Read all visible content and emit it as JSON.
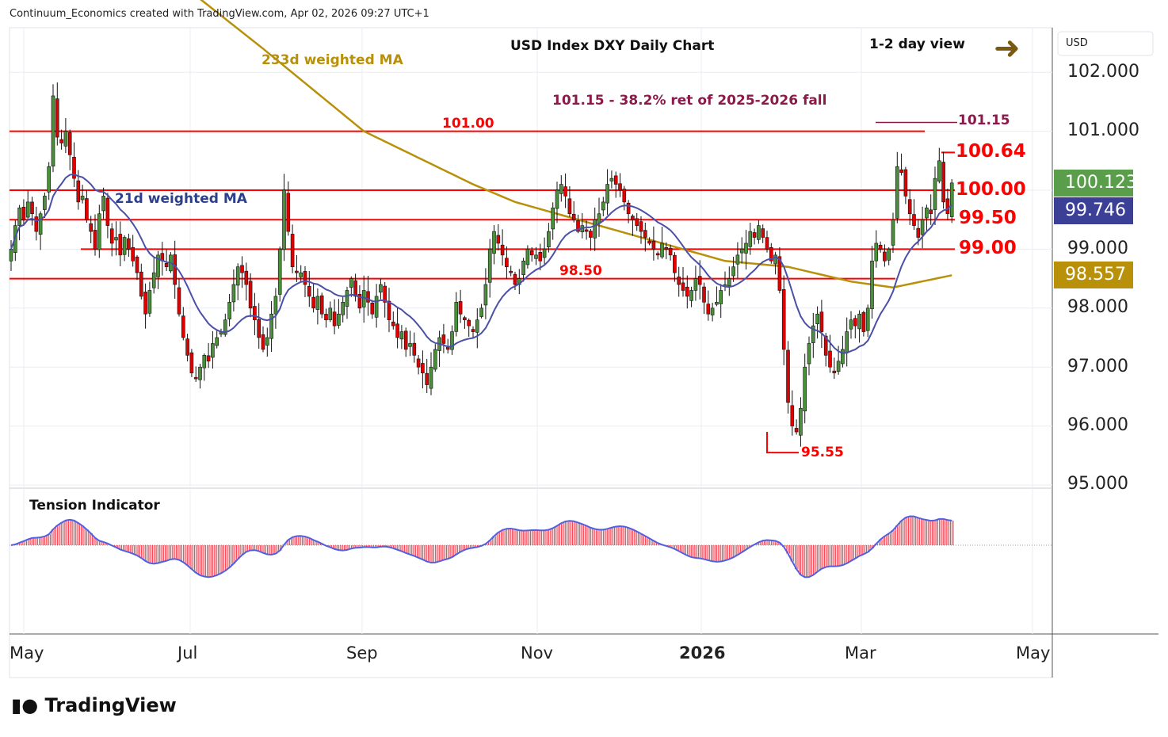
{
  "header": {
    "credit": "Continuum_Economics created with TradingView.com, Apr 02, 2026 09:27 UTC+1",
    "title": "USD Index DXY Daily Chart",
    "view": "1-2 day view",
    "currency": "USD",
    "logo": "TradingView"
  },
  "colors": {
    "up": "#4a8f3a",
    "down": "#e00000",
    "ma21": "#4b4fa8",
    "ma233": "#b8900a",
    "level": "#ff0000",
    "ret": "#8b1a4a",
    "badge_close": "#5a9e4b",
    "badge_ma21": "#3c3f96",
    "badge_ma233": "#b8900a"
  },
  "chart_data": {
    "type": "candlestick",
    "title": "USD Index DXY Daily Chart",
    "ylim": [
      95,
      102.7
    ],
    "yticks": [
      "102.000",
      "101.000",
      "100.000",
      "99.000",
      "98.000",
      "97.000",
      "96.000",
      "95.000"
    ],
    "xticks": [
      "May",
      "Jul",
      "Sep",
      "Nov",
      "2026",
      "Mar",
      "May"
    ],
    "closes": [
      99.0,
      99.4,
      99.7,
      99.5,
      99.8,
      99.6,
      99.3,
      99.6,
      99.9,
      100.4,
      101.6,
      100.9,
      100.8,
      101.0,
      100.6,
      100.2,
      99.8,
      99.9,
      99.5,
      99.3,
      99.0,
      99.6,
      99.9,
      99.4,
      99.1,
      99.2,
      98.9,
      99.2,
      99.0,
      98.8,
      98.6,
      98.2,
      97.9,
      98.3,
      98.6,
      98.9,
      98.8,
      98.7,
      98.9,
      98.4,
      97.9,
      97.5,
      97.2,
      96.9,
      96.8,
      97.0,
      97.2,
      97.1,
      97.4,
      97.5,
      97.6,
      97.8,
      98.1,
      98.4,
      98.7,
      98.6,
      98.4,
      98.0,
      97.8,
      97.5,
      97.3,
      97.5,
      97.9,
      98.2,
      99.0,
      100.0,
      99.3,
      98.7,
      98.6,
      98.6,
      98.4,
      98.2,
      98.0,
      98.2,
      97.9,
      97.8,
      98.0,
      97.7,
      97.9,
      98.1,
      98.3,
      98.5,
      98.2,
      98.0,
      98.3,
      98.1,
      97.9,
      98.2,
      98.4,
      98.1,
      97.8,
      97.7,
      97.5,
      97.6,
      97.3,
      97.4,
      97.2,
      97.0,
      96.9,
      96.7,
      97.0,
      97.3,
      97.5,
      97.4,
      97.3,
      97.6,
      98.1,
      97.9,
      97.8,
      97.7,
      97.6,
      97.8,
      98.0,
      98.4,
      99.0,
      99.3,
      99.1,
      98.9,
      98.7,
      98.6,
      98.4,
      98.5,
      98.8,
      99.0,
      98.9,
      98.9,
      98.8,
      99.0,
      99.3,
      99.7,
      100.0,
      100.1,
      99.9,
      99.6,
      99.5,
      99.3,
      99.4,
      99.3,
      99.2,
      99.5,
      99.6,
      99.8,
      100.1,
      100.2,
      100.1,
      100.0,
      99.8,
      99.6,
      99.5,
      99.4,
      99.3,
      99.2,
      99.1,
      99.0,
      98.9,
      99.1,
      99.0,
      98.9,
      98.6,
      98.4,
      98.3,
      98.2,
      98.3,
      98.5,
      98.4,
      98.1,
      97.9,
      98.0,
      98.1,
      98.3,
      98.4,
      98.5,
      98.7,
      98.9,
      99.0,
      99.1,
      99.3,
      99.2,
      99.4,
      99.2,
      99.0,
      98.8,
      98.9,
      98.3,
      97.3,
      96.4,
      96.0,
      95.9,
      96.3,
      97.0,
      97.4,
      97.7,
      97.9,
      97.6,
      97.2,
      97.0,
      96.9,
      97.1,
      97.3,
      97.6,
      97.8,
      97.7,
      97.9,
      97.6,
      98.0,
      98.8,
      99.1,
      99.0,
      98.8,
      99.0,
      99.5,
      100.4,
      100.3,
      99.9,
      99.6,
      99.4,
      99.2,
      99.5,
      99.7,
      99.6,
      100.2,
      100.5,
      99.8,
      99.6,
      100.123
    ],
    "ma233": [
      {
        "bar": 44,
        "value": 103.3
      },
      {
        "bar": 60,
        "value": 102.4
      },
      {
        "bar": 84,
        "value": 101.0
      },
      {
        "bar": 110,
        "value": 100.1
      },
      {
        "bar": 120,
        "value": 99.8
      },
      {
        "bar": 150,
        "value": 99.2
      },
      {
        "bar": 170,
        "value": 98.8
      },
      {
        "bar": 185,
        "value": 98.7
      },
      {
        "bar": 200,
        "value": 98.45
      },
      {
        "bar": 210,
        "value": 98.35
      },
      {
        "bar": 224,
        "value": 98.557
      }
    ],
    "levels": [
      {
        "value": 101.0,
        "label": "101.00"
      },
      {
        "value": 100.0,
        "label": "100.00"
      },
      {
        "value": 99.5,
        "label": "99.50"
      },
      {
        "value": 99.0,
        "label": "99.00"
      },
      {
        "value": 98.5,
        "label": "98.50"
      }
    ],
    "annotations": {
      "high": "100.64",
      "low": "95.55",
      "ret": "101.15",
      "ret_text": "101.15 - 38.2% ret of 2025-2026 fall",
      "ma233_label": "233d weighted MA",
      "ma21_label": "21d weighted MA"
    },
    "badges": {
      "close": "100.123",
      "ma21": "99.746",
      "ma233": "98.557"
    },
    "indicator": {
      "title": "Tension Indicator"
    }
  }
}
